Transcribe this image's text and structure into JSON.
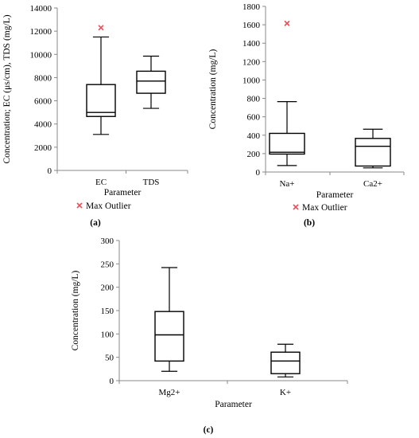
{
  "chart_data": [
    {
      "type": "box",
      "panel_label": "(a)",
      "ylabel": "Concentration; EC (μs/cm), TDS (mg/L)",
      "xlabel": "Parameter",
      "ylim": [
        0,
        14000
      ],
      "yticks": [
        0,
        2000,
        4000,
        6000,
        8000,
        10000,
        12000,
        14000
      ],
      "categories": [
        "EC",
        "TDS"
      ],
      "boxes": [
        {
          "category": "EC",
          "min": 3100,
          "q1": 4650,
          "median": 5000,
          "q3": 7400,
          "max": 11500
        },
        {
          "category": "TDS",
          "min": 5350,
          "q1": 6650,
          "median": 7700,
          "q3": 8550,
          "max": 9850
        }
      ],
      "outliers": [
        {
          "category": "EC",
          "value": 12300
        }
      ],
      "legend": {
        "label": "Max Outlier",
        "marker": "x",
        "color": "#e8505b"
      }
    },
    {
      "type": "box",
      "panel_label": "(b)",
      "ylabel": "Concentration (mg/L)",
      "xlabel": "Parameter",
      "ylim": [
        0,
        1800
      ],
      "yticks": [
        0,
        200,
        400,
        600,
        800,
        1000,
        1200,
        1400,
        1600,
        1800
      ],
      "categories": [
        "Na+",
        "Ca2+"
      ],
      "boxes": [
        {
          "category": "Na+",
          "min": 70,
          "q1": 195,
          "median": 215,
          "q3": 420,
          "max": 765
        },
        {
          "category": "Ca2+",
          "min": 45,
          "q1": 65,
          "median": 280,
          "q3": 365,
          "max": 465
        }
      ],
      "outliers": [
        {
          "category": "Na+",
          "value": 1615
        }
      ],
      "legend": {
        "label": "Max Outlier",
        "marker": "x",
        "color": "#e8505b"
      }
    },
    {
      "type": "box",
      "panel_label": "(c)",
      "ylabel": "Concentration (mg/L)",
      "xlabel": "Parameter",
      "ylim": [
        0,
        300
      ],
      "yticks": [
        0,
        50,
        100,
        150,
        200,
        250,
        300
      ],
      "categories": [
        "Mg2+",
        "K+"
      ],
      "boxes": [
        {
          "category": "Mg2+",
          "min": 20,
          "q1": 42,
          "median": 98,
          "q3": 148,
          "max": 242
        },
        {
          "category": "K+",
          "min": 8,
          "q1": 15,
          "median": 42,
          "q3": 61,
          "max": 78
        }
      ],
      "outliers": []
    }
  ]
}
